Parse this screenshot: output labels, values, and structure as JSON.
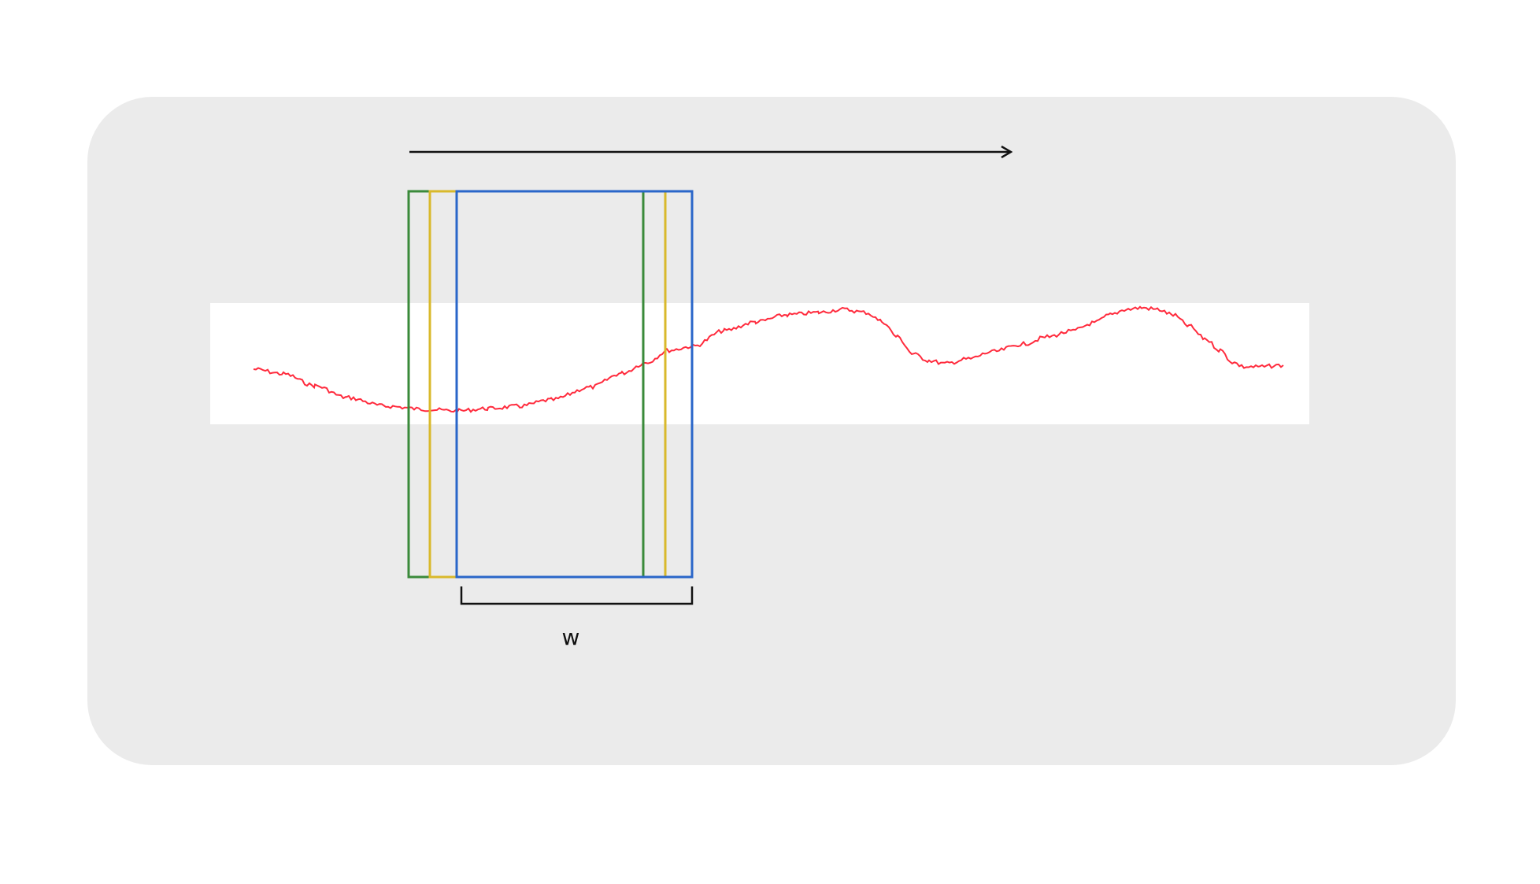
{
  "diagram": {
    "width_label": "w",
    "colors": {
      "panel_background": "#ebebeb",
      "signal_strip": "#ffffff",
      "signal_line": "#ff2b3d",
      "window_green": "#3a8a3a",
      "window_yellow": "#d9b92b",
      "window_blue": "#2a66c9",
      "arrow": "#111111",
      "bracket": "#111111"
    },
    "windows": [
      {
        "name": "window-green",
        "color_key": "window_green"
      },
      {
        "name": "window-yellow",
        "color_key": "window_yellow"
      },
      {
        "name": "window-blue",
        "color_key": "window_blue"
      }
    ],
    "arrow_direction": "right",
    "signal_icon": "noisy-waveform"
  }
}
